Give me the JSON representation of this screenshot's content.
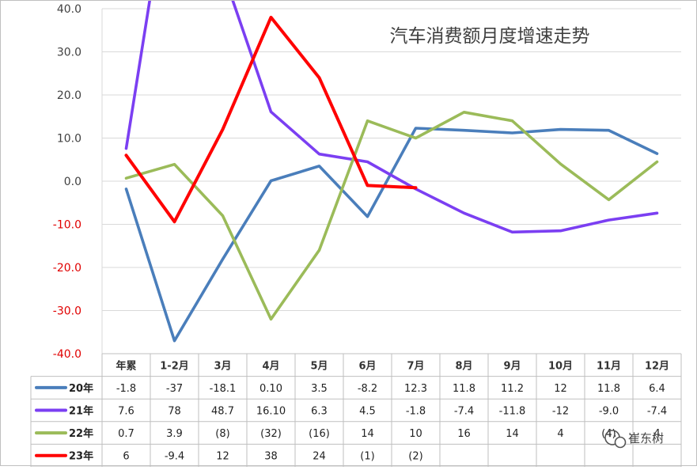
{
  "chart_data": {
    "type": "line",
    "title": "汽车消费额月度增速走势",
    "categories": [
      "年累",
      "1-2月",
      "3月",
      "4月",
      "5月",
      "6月",
      "7月",
      "8月",
      "9月",
      "10月",
      "11月",
      "12月"
    ],
    "ylim": [
      -40,
      40
    ],
    "yticks": [
      40,
      30,
      20,
      10,
      0,
      -10,
      -20,
      -30,
      -40
    ],
    "ytick_labels": [
      "40.0",
      "30.0",
      "20.0",
      "10.0",
      "0.0",
      "-10.0",
      "-20.0",
      "-30.0",
      "-40.0"
    ],
    "ytick_colors": {
      "positive": "#404040",
      "negative": "#e00000"
    },
    "grid": true,
    "legend_placement": "table-left",
    "series": [
      {
        "name": "20年",
        "color": "#4a7ebb",
        "values": [
          -1.8,
          -37,
          -18.1,
          0.1,
          3.5,
          -8.2,
          12.3,
          11.8,
          11.2,
          12,
          11.8,
          6.4
        ],
        "labels": [
          "-1.8",
          "-37",
          "-18.1",
          "0.10",
          "3.5",
          "-8.2",
          "12.3",
          "11.8",
          "11.2",
          "12",
          "11.8",
          "6.4"
        ]
      },
      {
        "name": "21年",
        "color": "#7b3ff2",
        "values": [
          7.6,
          78,
          48.7,
          16.1,
          6.3,
          4.5,
          -1.8,
          -7.4,
          -11.8,
          -11.5,
          -9.0,
          -7.4
        ],
        "labels": [
          "7.6",
          "78",
          "48.7",
          "16.10",
          "6.3",
          "4.5",
          "-1.8",
          "-7.4",
          "-11.8",
          "-12",
          "-9.0",
          "-7.4"
        ]
      },
      {
        "name": "22年",
        "color": "#9bbb59",
        "values": [
          0.7,
          3.9,
          -8,
          -32,
          -16,
          14,
          10,
          16,
          14,
          4,
          -4.3,
          4.5
        ],
        "labels": [
          "0.7",
          "3.9",
          "(8)",
          "(32)",
          "(16)",
          "14",
          "10",
          "16",
          "14",
          "4",
          "(4)",
          "4"
        ]
      },
      {
        "name": "23年",
        "color": "#ff0000",
        "values": [
          6,
          -9.4,
          12,
          38,
          24,
          -1,
          -1.5,
          null,
          null,
          null,
          null,
          null
        ],
        "labels": [
          "6",
          "-9.4",
          "12",
          "38",
          "24",
          "(1)",
          "(2)",
          "",
          "",
          "",
          "",
          ""
        ]
      }
    ]
  },
  "watermark": {
    "icon": "wechat-icon",
    "text": "崔东树"
  }
}
